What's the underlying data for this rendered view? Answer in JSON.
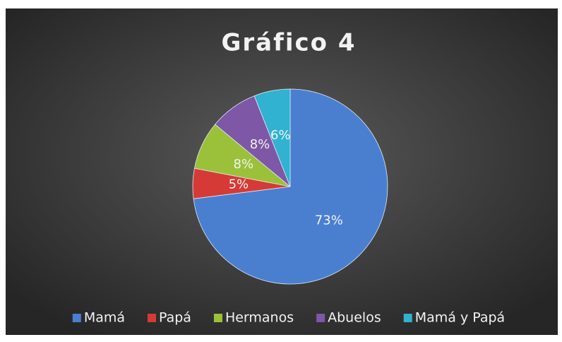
{
  "chart_data": {
    "type": "pie",
    "title": "Gráfico 4",
    "categories": [
      "Mamá",
      "Papá",
      "Hermanos",
      "Abuelos",
      "Mamá y Papá"
    ],
    "values": [
      73,
      5,
      8,
      8,
      6
    ],
    "value_labels": [
      "73%",
      "5%",
      "8%",
      "8%",
      "6%"
    ],
    "colors": [
      "#4a7fd0",
      "#d63a36",
      "#9bc13a",
      "#7e57a6",
      "#30b2d0"
    ],
    "legend": "bottom"
  }
}
